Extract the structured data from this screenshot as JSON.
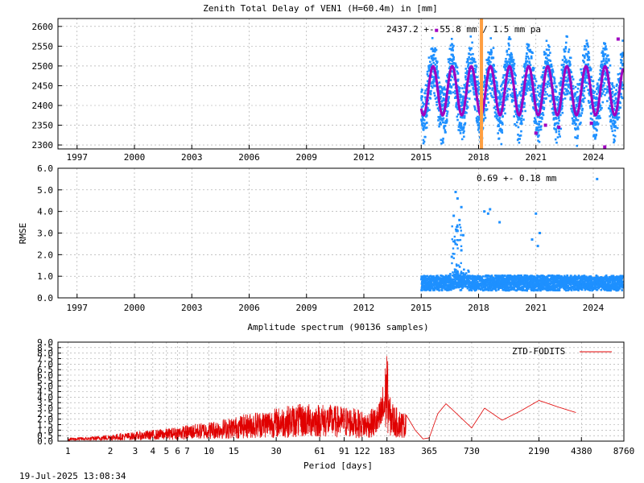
{
  "page": {
    "timestamp": "19-Jul-2025 13:08:34"
  },
  "colors": {
    "ztd_points": "#1e90ff",
    "ztd_fit": "#a000c0",
    "offset_marker": "#ff9f40",
    "rmse_points": "#1e90ff",
    "spectrum": "#e00000",
    "grid": "#a0a0a0"
  },
  "chart_data": [
    {
      "id": "ztd",
      "type": "scatter",
      "title": "Zenith Total Delay of VEN1 (H=60.4m) in [mm]",
      "annotation": "2437.2 +-  55.8 mm /  1.5 mm pa",
      "xlabel": "",
      "ylabel": "",
      "xlim": [
        1996,
        2025.6
      ],
      "ylim": [
        2290,
        2620
      ],
      "xticks": [
        1997,
        2000,
        2003,
        2006,
        2009,
        2012,
        2015,
        2018,
        2021,
        2024
      ],
      "yticks": [
        2300,
        2350,
        2400,
        2450,
        2500,
        2550,
        2600
      ],
      "grid": true,
      "data_start": 2015.0,
      "data_end": 2025.55,
      "offset_year": 2018.15,
      "series": [
        {
          "values": "ZTD samples, 2015.0–2025.5, annual cycle 2370–2500 mm"
        },
        {
          "values": "fitted seasonal model: mean 2437.2 mm, annual amplitude ~62 mm, peak ~2500 mm, trough ~2370 mm"
        }
      ]
    },
    {
      "id": "rmse",
      "type": "scatter",
      "title": "",
      "annotation": "0.69 +-  0.18 mm",
      "xlabel": "",
      "ylabel": "RMSE",
      "xlim": [
        1996,
        2025.6
      ],
      "ylim": [
        0.0,
        6.0
      ],
      "xticks": [
        1997,
        2000,
        2003,
        2006,
        2009,
        2012,
        2015,
        2018,
        2021,
        2024
      ],
      "yticks": [
        0.0,
        1.0,
        2.0,
        3.0,
        4.0,
        5.0,
        6.0
      ],
      "ytick_labels": [
        "0.0",
        "1.0",
        "2.0",
        "3.0",
        "4.0",
        "5.0",
        "6.0"
      ],
      "grid": true,
      "data_start": 2015.0,
      "data_end": 2025.55,
      "baseline_mean": 0.69,
      "outliers": [
        [
          2016.8,
          4.9
        ],
        [
          2016.9,
          4.6
        ],
        [
          2017.1,
          4.2
        ],
        [
          2016.7,
          3.8
        ],
        [
          2017.0,
          3.6
        ],
        [
          2016.9,
          3.1
        ],
        [
          2017.2,
          2.9
        ],
        [
          2016.8,
          2.5
        ],
        [
          2017.1,
          2.2
        ],
        [
          2016.6,
          1.9
        ],
        [
          2018.3,
          4.0
        ],
        [
          2018.6,
          4.1
        ],
        [
          2018.5,
          3.9
        ],
        [
          2019.1,
          3.5
        ],
        [
          2021.0,
          3.9
        ],
        [
          2021.2,
          3.0
        ],
        [
          2020.8,
          2.7
        ],
        [
          2024.2,
          5.5
        ],
        [
          2021.1,
          2.4
        ]
      ]
    },
    {
      "id": "spectrum",
      "type": "line",
      "title": "Amplitude spectrum (90136 samples)",
      "xlabel": "Period [days]",
      "ylabel": "",
      "xscale": "log",
      "xlim": [
        0.85,
        8760
      ],
      "ylim": [
        0.0,
        9.0
      ],
      "xticks": [
        1,
        2,
        3,
        4,
        5,
        6,
        7,
        10,
        15,
        30,
        61,
        91,
        122,
        183,
        365,
        730,
        2190,
        4380,
        8760
      ],
      "yticks": [
        0.0,
        0.5,
        1.0,
        1.5,
        2.0,
        2.5,
        3.0,
        3.5,
        4.0,
        4.5,
        5.0,
        5.5,
        6.0,
        6.5,
        7.0,
        7.5,
        8.0,
        8.5,
        9.0
      ],
      "ytick_labels": [
        "0.0",
        "0.5",
        "1.0",
        "1.5",
        "2.0",
        "2.5",
        "3.0",
        "3.5",
        "4.0",
        "4.5",
        "5.0",
        "5.5",
        "6.0",
        "6.5",
        "7.0",
        "7.5",
        "8.0",
        "8.5",
        "9.0"
      ],
      "grid": true,
      "legend": "top-right",
      "series": [
        {
          "name": "ZTD-FODITS",
          "x": [
            1,
            1.5,
            2,
            3,
            5,
            7,
            10,
            15,
            20,
            30,
            40,
            61,
            80,
            100,
            130,
            160,
            175,
            183,
            190,
            210,
            250,
            290,
            330,
            365,
            420,
            480,
            560,
            730,
            900,
            1200,
            1600,
            2190,
            3000,
            4000
          ],
          "y": [
            0.3,
            0.4,
            0.6,
            0.8,
            1.1,
            1.4,
            1.7,
            2.1,
            2.5,
            2.9,
            3.2,
            3.3,
            3.1,
            3.0,
            2.5,
            3.2,
            5.5,
            8.5,
            4.0,
            3.0,
            2.4,
            1.0,
            0.2,
            0.3,
            2.5,
            3.4,
            2.6,
            1.2,
            3.0,
            1.9,
            2.7,
            3.7,
            3.1,
            2.6
          ]
        }
      ]
    }
  ]
}
